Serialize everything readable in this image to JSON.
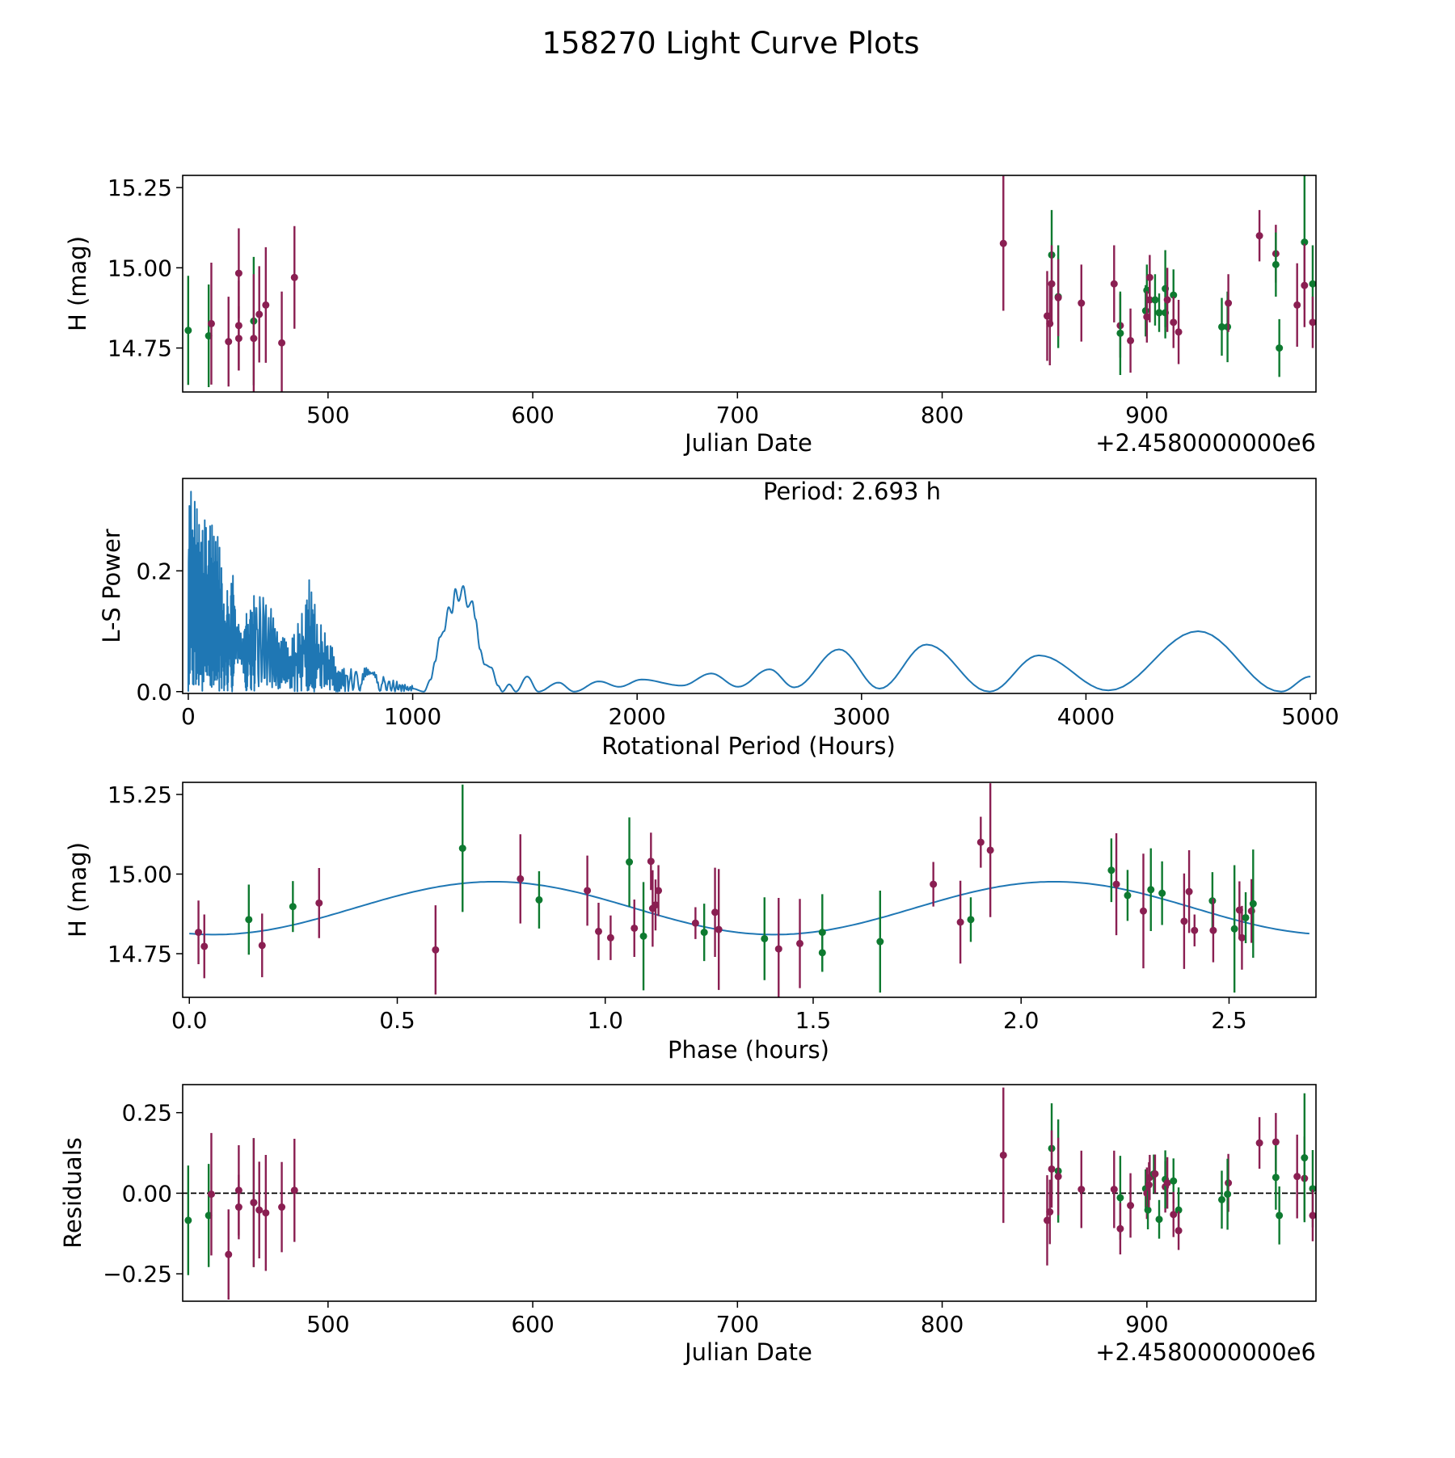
{
  "title": "158270 Light Curve Plots",
  "colors": {
    "p": "#8a1f52",
    "g": "#0e7a30",
    "curve": "#1f77b4"
  },
  "chart_data": [
    {
      "type": "scatter",
      "name": "light-curve",
      "xlabel": "Julian Date",
      "ylabel": "H (mag)",
      "offset_text": "+2.4580000000e6",
      "xlim": [
        429,
        982.6
      ],
      "ylim": [
        14.613,
        15.288
      ],
      "xticks": [
        500,
        600,
        700,
        800,
        900
      ],
      "xtick_labels": [
        "500",
        "600",
        "700",
        "800",
        "900"
      ],
      "yticks": [
        14.75,
        15.0,
        15.25
      ],
      "ytick_labels": [
        "14.75",
        "15.00",
        "15.25"
      ],
      "points": [
        [
          431.7,
          14.805,
          0.17,
          "g"
        ],
        [
          441.7,
          14.788,
          0.16,
          "g"
        ],
        [
          443,
          14.826,
          0.19,
          "p"
        ],
        [
          451.4,
          14.77,
          0.14,
          "p"
        ],
        [
          456.4,
          14.983,
          0.14,
          "p"
        ],
        [
          456.4,
          14.82,
          0.14,
          "p"
        ],
        [
          456.4,
          14.78,
          0.1,
          "p"
        ],
        [
          463.7,
          14.834,
          0.2,
          "g"
        ],
        [
          463.7,
          14.78,
          0.2,
          "p"
        ],
        [
          466.4,
          14.855,
          0.15,
          "p"
        ],
        [
          469.6,
          14.884,
          0.18,
          "p"
        ],
        [
          477.4,
          14.766,
          0.16,
          "p"
        ],
        [
          483.6,
          14.97,
          0.16,
          "p"
        ],
        [
          829.9,
          15.076,
          0.21,
          "p"
        ],
        [
          851.3,
          14.85,
          0.14,
          "p"
        ],
        [
          853.5,
          15.04,
          0.14,
          "g"
        ],
        [
          853.5,
          14.95,
          0.12,
          "p"
        ],
        [
          852.6,
          14.826,
          0.13,
          "p"
        ],
        [
          856.7,
          14.91,
          0.16,
          "g"
        ],
        [
          856.7,
          14.907,
          0.12,
          "p"
        ],
        [
          868,
          14.89,
          0.12,
          "p"
        ],
        [
          884,
          14.95,
          0.12,
          "p"
        ],
        [
          887,
          14.82,
          0.1,
          "p"
        ],
        [
          887,
          14.796,
          0.13,
          "g"
        ],
        [
          892,
          14.773,
          0.1,
          "p"
        ],
        [
          899.4,
          14.866,
          0.08,
          "g"
        ],
        [
          900,
          14.93,
          0.08,
          "g"
        ],
        [
          900,
          14.847,
          0.08,
          "p"
        ],
        [
          901.4,
          14.97,
          0.07,
          "p"
        ],
        [
          901.4,
          14.9,
          0.07,
          "p"
        ],
        [
          904,
          14.9,
          0.08,
          "g"
        ],
        [
          906,
          14.86,
          0.06,
          "g"
        ],
        [
          909,
          14.935,
          0.12,
          "g"
        ],
        [
          909,
          14.86,
          0.08,
          "g"
        ],
        [
          910,
          14.9,
          0.1,
          "p"
        ],
        [
          913,
          14.915,
          0.08,
          "g"
        ],
        [
          913,
          14.83,
          0.08,
          "p"
        ],
        [
          915.5,
          14.8,
          0.1,
          "p"
        ],
        [
          936.6,
          14.816,
          0.09,
          "g"
        ],
        [
          939.4,
          14.816,
          0.11,
          "g"
        ],
        [
          939.8,
          14.89,
          0.09,
          "p"
        ],
        [
          955,
          15.1,
          0.08,
          "p"
        ],
        [
          963,
          15.044,
          0.09,
          "p"
        ],
        [
          963,
          15.01,
          0.1,
          "g"
        ],
        [
          964.7,
          14.75,
          0.09,
          "g"
        ],
        [
          973.4,
          14.884,
          0.13,
          "p"
        ],
        [
          977,
          15.08,
          0.21,
          "g"
        ],
        [
          977,
          14.945,
          0.13,
          "p"
        ],
        [
          981,
          14.95,
          0.12,
          "g"
        ],
        [
          981,
          14.83,
          0.08,
          "p"
        ]
      ]
    },
    {
      "type": "line",
      "name": "periodogram",
      "xlabel": "Rotational Period (Hours)",
      "ylabel": "L-S Power",
      "annotation": "Period: 2.693 h",
      "xlim": [
        -25,
        5025
      ],
      "ylim": [
        -0.003,
        0.353
      ],
      "xticks": [
        0,
        1000,
        2000,
        3000,
        4000,
        5000
      ],
      "xtick_labels": [
        "0",
        "1000",
        "2000",
        "3000",
        "4000",
        "5000"
      ],
      "yticks": [
        0.0,
        0.2
      ],
      "ytick_labels": [
        "0.0",
        "0.2"
      ],
      "noisy_envelope": [
        [
          0,
          0.35
        ],
        [
          20,
          0.33
        ],
        [
          60,
          0.3
        ],
        [
          100,
          0.28
        ],
        [
          130,
          0.3
        ],
        [
          160,
          0.15
        ],
        [
          200,
          0.2
        ],
        [
          250,
          0.12
        ],
        [
          300,
          0.17
        ],
        [
          350,
          0.17
        ],
        [
          400,
          0.1
        ],
        [
          450,
          0.08
        ],
        [
          500,
          0.13
        ],
        [
          540,
          0.19
        ],
        [
          580,
          0.12
        ],
        [
          620,
          0.1
        ],
        [
          660,
          0.05
        ],
        [
          720,
          0.04
        ],
        [
          800,
          0.04
        ],
        [
          900,
          0.02
        ],
        [
          1000,
          0.01
        ]
      ],
      "smooth": [
        [
          1000,
          0.005
        ],
        [
          1050,
          0.0
        ],
        [
          1080,
          0.02
        ],
        [
          1100,
          0.05
        ],
        [
          1120,
          0.09
        ],
        [
          1140,
          0.1
        ],
        [
          1160,
          0.14
        ],
        [
          1175,
          0.13
        ],
        [
          1190,
          0.17
        ],
        [
          1205,
          0.15
        ],
        [
          1225,
          0.175
        ],
        [
          1245,
          0.14
        ],
        [
          1265,
          0.15
        ],
        [
          1280,
          0.12
        ],
        [
          1300,
          0.07
        ],
        [
          1320,
          0.045
        ],
        [
          1350,
          0.04
        ],
        [
          1380,
          0.01
        ],
        [
          1400,
          0.0
        ],
        [
          1430,
          0.012
        ],
        [
          1460,
          0.0
        ],
        [
          1510,
          0.025
        ],
        [
          1560,
          0.0
        ],
        [
          1650,
          0.015
        ],
        [
          1720,
          0.0
        ],
        [
          1830,
          0.017
        ],
        [
          1920,
          0.008
        ],
        [
          2020,
          0.02
        ],
        [
          2200,
          0.01
        ],
        [
          2330,
          0.03
        ],
        [
          2450,
          0.008
        ],
        [
          2590,
          0.037
        ],
        [
          2700,
          0.007
        ],
        [
          2900,
          0.07
        ],
        [
          3080,
          0.005
        ],
        [
          3290,
          0.078
        ],
        [
          3570,
          0.0
        ],
        [
          3790,
          0.06
        ],
        [
          4100,
          0.002
        ],
        [
          4500,
          0.1
        ],
        [
          4870,
          0.0
        ],
        [
          5000,
          0.025
        ]
      ]
    },
    {
      "type": "scatter",
      "name": "phased-curve",
      "xlabel": "Phase (hours)",
      "ylabel": "H (mag)",
      "xlim": [
        -0.016,
        2.709
      ],
      "ylim": [
        14.613,
        15.288
      ],
      "xticks": [
        0,
        0.5,
        1,
        1.5,
        2,
        2.5
      ],
      "xtick_labels": [
        "0.0",
        "0.5",
        "1.0",
        "1.5",
        "2.0",
        "2.5"
      ],
      "yticks": [
        14.75,
        15.0,
        15.25
      ],
      "ytick_labels": [
        "14.75",
        "15.00",
        "15.25"
      ],
      "fit": {
        "mean": 14.893,
        "amplitude": 0.083,
        "period": 1.3465,
        "phase0": 0.06,
        "xmax": 2.693
      },
      "points": [
        [
          0.022,
          14.817,
          0.1,
          "p"
        ],
        [
          0.036,
          14.773,
          0.1,
          "p"
        ],
        [
          0.143,
          14.857,
          0.11,
          "g"
        ],
        [
          0.175,
          14.776,
          0.1,
          "p"
        ],
        [
          0.249,
          14.898,
          0.08,
          "g"
        ],
        [
          0.312,
          14.909,
          0.11,
          "p"
        ],
        [
          0.592,
          14.762,
          0.14,
          "p"
        ],
        [
          0.657,
          15.081,
          0.2,
          "g"
        ],
        [
          0.796,
          14.985,
          0.14,
          "p"
        ],
        [
          0.841,
          14.919,
          0.09,
          "g"
        ],
        [
          0.957,
          14.948,
          0.11,
          "p"
        ],
        [
          0.984,
          14.82,
          0.09,
          "p"
        ],
        [
          1.013,
          14.8,
          0.07,
          "p"
        ],
        [
          1.058,
          15.038,
          0.14,
          "g"
        ],
        [
          1.07,
          14.83,
          0.09,
          "p"
        ],
        [
          1.092,
          14.805,
          0.17,
          "g"
        ],
        [
          1.11,
          15.04,
          0.09,
          "p"
        ],
        [
          1.114,
          14.892,
          0.12,
          "p"
        ],
        [
          1.121,
          14.903,
          0.08,
          "p"
        ],
        [
          1.128,
          14.948,
          0.08,
          "p"
        ],
        [
          1.217,
          14.846,
          0.05,
          "p"
        ],
        [
          1.238,
          14.817,
          0.09,
          "g"
        ],
        [
          1.264,
          14.88,
          0.14,
          "p"
        ],
        [
          1.273,
          14.826,
          0.19,
          "p"
        ],
        [
          1.383,
          14.797,
          0.13,
          "g"
        ],
        [
          1.417,
          14.765,
          0.16,
          "p"
        ],
        [
          1.468,
          14.782,
          0.14,
          "p"
        ],
        [
          1.522,
          14.817,
          0.12,
          "g"
        ],
        [
          1.522,
          14.753,
          0.06,
          "g"
        ],
        [
          1.661,
          14.788,
          0.16,
          "g"
        ],
        [
          1.789,
          14.968,
          0.07,
          "p"
        ],
        [
          1.854,
          14.849,
          0.13,
          "p"
        ],
        [
          1.879,
          14.857,
          0.07,
          "g"
        ],
        [
          1.903,
          15.1,
          0.08,
          "p"
        ],
        [
          1.926,
          15.075,
          0.21,
          "p"
        ],
        [
          2.217,
          15.012,
          0.1,
          "g"
        ],
        [
          2.229,
          14.968,
          0.16,
          "p"
        ],
        [
          2.256,
          14.933,
          0.08,
          "g"
        ],
        [
          2.294,
          14.884,
          0.18,
          "p"
        ],
        [
          2.312,
          14.951,
          0.13,
          "g"
        ],
        [
          2.339,
          14.94,
          0.1,
          "g"
        ],
        [
          2.392,
          14.852,
          0.15,
          "p"
        ],
        [
          2.404,
          14.945,
          0.13,
          "p"
        ],
        [
          2.417,
          14.823,
          0.05,
          "p"
        ],
        [
          2.46,
          14.916,
          0.09,
          "g"
        ],
        [
          2.462,
          14.823,
          0.1,
          "p"
        ],
        [
          2.513,
          14.828,
          0.2,
          "g"
        ],
        [
          2.525,
          14.887,
          0.09,
          "p"
        ],
        [
          2.531,
          14.8,
          0.1,
          "p"
        ],
        [
          2.54,
          14.863,
          0.08,
          "g"
        ],
        [
          2.554,
          14.884,
          0.1,
          "p"
        ],
        [
          2.558,
          14.907,
          0.17,
          "g"
        ]
      ]
    },
    {
      "type": "scatter",
      "name": "residuals",
      "xlabel": "Julian Date",
      "ylabel": "Residuals",
      "offset_text": "+2.4580000000e6",
      "xlim": [
        429,
        982.6
      ],
      "ylim": [
        -0.335,
        0.337
      ],
      "xticks": [
        500,
        600,
        700,
        800,
        900
      ],
      "xtick_labels": [
        "500",
        "600",
        "700",
        "800",
        "900"
      ],
      "yticks": [
        -0.25,
        0,
        0.25
      ],
      "ytick_labels": [
        "−0.25",
        "0.00",
        "0.25"
      ],
      "zero_line": 0,
      "points": [
        [
          431.7,
          -0.084,
          0.17,
          "g"
        ],
        [
          441.7,
          -0.069,
          0.16,
          "g"
        ],
        [
          443,
          -0.003,
          0.19,
          "p"
        ],
        [
          451.4,
          -0.19,
          0.14,
          "p"
        ],
        [
          456.4,
          0.009,
          0.14,
          "p"
        ],
        [
          456.4,
          -0.043,
          0.1,
          "p"
        ],
        [
          463.7,
          -0.029,
          0.2,
          "g"
        ],
        [
          463.7,
          -0.029,
          0.2,
          "p"
        ],
        [
          466.4,
          -0.052,
          0.15,
          "p"
        ],
        [
          469.6,
          -0.061,
          0.18,
          "p"
        ],
        [
          477.4,
          -0.043,
          0.14,
          "p"
        ],
        [
          483.6,
          0.009,
          0.16,
          "p"
        ],
        [
          829.9,
          0.118,
          0.21,
          "p"
        ],
        [
          851.3,
          -0.084,
          0.14,
          "p"
        ],
        [
          852.6,
          -0.058,
          0.1,
          "p"
        ],
        [
          853.5,
          0.139,
          0.14,
          "g"
        ],
        [
          853.5,
          0.075,
          0.12,
          "p"
        ],
        [
          856.7,
          0.069,
          0.16,
          "g"
        ],
        [
          856.7,
          0.052,
          0.12,
          "p"
        ],
        [
          868,
          0.012,
          0.12,
          "p"
        ],
        [
          884,
          0.012,
          0.12,
          "p"
        ],
        [
          887,
          -0.014,
          0.13,
          "g"
        ],
        [
          887,
          -0.11,
          0.08,
          "p"
        ],
        [
          892,
          -0.038,
          0.1,
          "p"
        ],
        [
          899.4,
          0.014,
          0.06,
          "g"
        ],
        [
          900,
          0.0,
          0.08,
          "p"
        ],
        [
          900.5,
          -0.052,
          0.06,
          "g"
        ],
        [
          901,
          0.026,
          0.07,
          "p"
        ],
        [
          901.4,
          0.049,
          0.07,
          "p"
        ],
        [
          903.4,
          0.06,
          0.06,
          "g"
        ],
        [
          904,
          0.06,
          0.06,
          "p"
        ],
        [
          906,
          -0.081,
          0.06,
          "g"
        ],
        [
          909,
          0.02,
          0.08,
          "p"
        ],
        [
          909,
          0.043,
          0.09,
          "g"
        ],
        [
          910,
          0.032,
          0.08,
          "p"
        ],
        [
          913,
          0.038,
          0.07,
          "g"
        ],
        [
          913,
          -0.066,
          0.07,
          "p"
        ],
        [
          915.5,
          -0.052,
          0.07,
          "g"
        ],
        [
          915.5,
          -0.116,
          0.06,
          "p"
        ],
        [
          936.6,
          -0.02,
          0.09,
          "g"
        ],
        [
          939.8,
          0.032,
          0.09,
          "p"
        ],
        [
          939.4,
          -0.003,
          0.11,
          "g"
        ],
        [
          955,
          0.156,
          0.08,
          "p"
        ],
        [
          963,
          0.159,
          0.09,
          "p"
        ],
        [
          963,
          0.049,
          0.1,
          "g"
        ],
        [
          964.7,
          -0.069,
          0.09,
          "g"
        ],
        [
          973.4,
          0.052,
          0.13,
          "p"
        ],
        [
          977,
          0.046,
          0.13,
          "p"
        ],
        [
          977,
          0.11,
          0.2,
          "g"
        ],
        [
          981,
          0.014,
          0.12,
          "g"
        ],
        [
          981,
          -0.069,
          0.08,
          "p"
        ]
      ]
    }
  ]
}
